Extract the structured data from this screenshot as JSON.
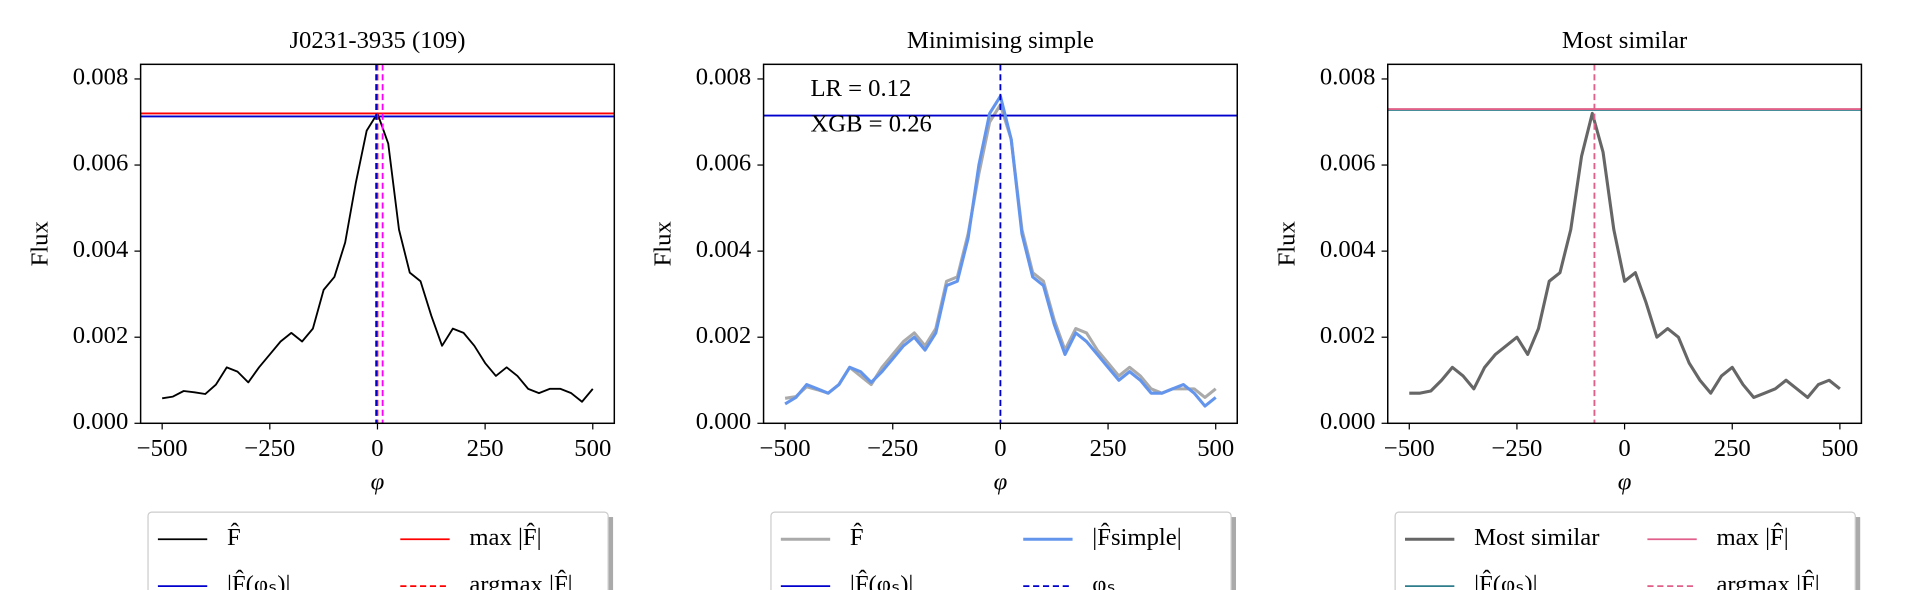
{
  "chart_data": [
    {
      "type": "line",
      "title": "J0231-3935 (109)",
      "xlabel": "φ",
      "ylabel": "Flux",
      "xlim": [
        -550,
        550
      ],
      "ylim": [
        0,
        0.00834
      ],
      "xticks": [
        {
          "value": -500,
          "label": "−500"
        },
        {
          "value": -250,
          "label": "−250"
        },
        0,
        250,
        500
      ],
      "yticks": [
        {
          "value": 0,
          "label": "0.000"
        },
        0.002,
        0.004,
        0.006,
        0.008
      ],
      "annotations": [],
      "lines": [
        {
          "kind": "curve",
          "name": "F̂",
          "color": "#000000",
          "width": 1.5,
          "x": [
            -500,
            -475,
            -450,
            -425,
            -400,
            -375,
            -350,
            -325,
            -300,
            -275,
            -250,
            -225,
            -200,
            -175,
            -150,
            -125,
            -100,
            -75,
            -50,
            -25,
            0,
            25,
            50,
            75,
            100,
            125,
            150,
            175,
            200,
            225,
            250,
            275,
            300,
            325,
            350,
            375,
            400,
            425,
            450,
            475,
            500
          ],
          "values": [
            0.00058,
            0.00062,
            0.00075,
            0.00072,
            0.00068,
            0.0009,
            0.0013,
            0.0012,
            0.00095,
            0.0013,
            0.0016,
            0.0019,
            0.0021,
            0.0019,
            0.0022,
            0.0031,
            0.0034,
            0.0042,
            0.0056,
            0.0068,
            0.0072,
            0.0065,
            0.0045,
            0.0035,
            0.0033,
            0.0025,
            0.0018,
            0.0022,
            0.0021,
            0.0018,
            0.0014,
            0.0011,
            0.0013,
            0.0011,
            0.0008,
            0.0007,
            0.0008,
            0.0008,
            0.0007,
            0.0005,
            0.0008
          ]
        },
        {
          "kind": "hline",
          "name": "|F̂(φₛ)|",
          "color": "#0000cc",
          "value": 0.00713
        },
        {
          "kind": "hline",
          "name": "max |F̂|",
          "color": "#ff0000",
          "value": 0.0072
        },
        {
          "kind": "vline",
          "name": "argmax |F̂|",
          "color": "#ff0000",
          "dash": true,
          "value": 0
        },
        {
          "kind": "vline",
          "color": "#0000cc",
          "dash": true,
          "value": -3
        },
        {
          "kind": "vline",
          "color": "#ff00ff",
          "dash": true,
          "value": 12
        }
      ]
    },
    {
      "type": "line",
      "title": "Minimising simple",
      "xlabel": "φ",
      "ylabel": "Flux",
      "xlim": [
        -550,
        550
      ],
      "ylim": [
        0,
        0.00834
      ],
      "xticks": [
        {
          "value": -500,
          "label": "−500"
        },
        {
          "value": -250,
          "label": "−250"
        },
        0,
        250,
        500
      ],
      "yticks": [
        {
          "value": 0,
          "label": "0.000"
        },
        0.002,
        0.004,
        0.006,
        0.008
      ],
      "annotations": [
        "LR = 0.12",
        "XGB = 0.26"
      ],
      "lines": [
        {
          "kind": "curve",
          "name": "F̂",
          "color": "#aaaaaa",
          "width": 2.5,
          "x": [
            -500,
            -475,
            -450,
            -425,
            -400,
            -375,
            -350,
            -325,
            -300,
            -275,
            -250,
            -225,
            -200,
            -175,
            -150,
            -125,
            -100,
            -75,
            -50,
            -25,
            0,
            25,
            50,
            75,
            100,
            125,
            150,
            175,
            200,
            225,
            250,
            275,
            300,
            325,
            350,
            375,
            400,
            425,
            450,
            475,
            500
          ],
          "values": [
            0.00058,
            0.00062,
            0.00085,
            0.00078,
            0.0007,
            0.0009,
            0.0013,
            0.0011,
            0.0009,
            0.0013,
            0.0016,
            0.0019,
            0.0021,
            0.0018,
            0.0022,
            0.0033,
            0.0034,
            0.0044,
            0.0058,
            0.007,
            0.0074,
            0.0066,
            0.0045,
            0.0035,
            0.0033,
            0.0024,
            0.0017,
            0.0022,
            0.0021,
            0.0017,
            0.0014,
            0.0011,
            0.0013,
            0.0011,
            0.0008,
            0.0007,
            0.0008,
            0.0008,
            0.0008,
            0.0006,
            0.0008
          ]
        },
        {
          "kind": "hline",
          "name": "|F̂(φₛ)|",
          "color": "#0000cc",
          "value": 0.00715
        },
        {
          "kind": "curve",
          "name": "|F̂simple|",
          "color": "#6495ed",
          "width": 2.5,
          "x": [
            -500,
            -475,
            -450,
            -425,
            -400,
            -375,
            -350,
            -325,
            -300,
            -275,
            -250,
            -225,
            -200,
            -175,
            -150,
            -125,
            -100,
            -75,
            -50,
            -25,
            0,
            25,
            50,
            75,
            100,
            125,
            150,
            175,
            200,
            225,
            250,
            275,
            300,
            325,
            350,
            375,
            400,
            425,
            450,
            475,
            500
          ],
          "values": [
            0.00045,
            0.0006,
            0.0009,
            0.0008,
            0.0007,
            0.0009,
            0.0013,
            0.0012,
            0.00095,
            0.0012,
            0.0015,
            0.0018,
            0.002,
            0.0017,
            0.0021,
            0.0032,
            0.0033,
            0.0043,
            0.006,
            0.0072,
            0.0076,
            0.0066,
            0.0044,
            0.0034,
            0.0032,
            0.0023,
            0.0016,
            0.0021,
            0.0019,
            0.0016,
            0.0013,
            0.001,
            0.0012,
            0.001,
            0.0007,
            0.0007,
            0.0008,
            0.0009,
            0.0007,
            0.0004,
            0.0006
          ]
        },
        {
          "kind": "vline",
          "name": "φₛ",
          "color": "#0000cc",
          "dash": true,
          "value": 0
        }
      ]
    },
    {
      "type": "line",
      "title": "Most similar",
      "xlabel": "φ",
      "ylabel": "Flux",
      "xlim": [
        -550,
        550
      ],
      "ylim": [
        0,
        0.00834
      ],
      "xticks": [
        {
          "value": -500,
          "label": "−500"
        },
        {
          "value": -250,
          "label": "−250"
        },
        0,
        250,
        500
      ],
      "yticks": [
        {
          "value": 0,
          "label": "0.000"
        },
        0.002,
        0.004,
        0.006,
        0.008
      ],
      "annotations": [],
      "lines": [
        {
          "kind": "curve",
          "name": "Most similar",
          "color": "#666666",
          "width": 2.5,
          "x": [
            -500,
            -475,
            -450,
            -425,
            -400,
            -375,
            -350,
            -325,
            -300,
            -275,
            -250,
            -225,
            -200,
            -175,
            -150,
            -125,
            -100,
            -75,
            -50,
            -25,
            0,
            25,
            50,
            75,
            100,
            125,
            150,
            175,
            200,
            225,
            250,
            275,
            300,
            325,
            350,
            375,
            400,
            425,
            450,
            475,
            500
          ],
          "values": [
            0.0007,
            0.0007,
            0.00075,
            0.001,
            0.0013,
            0.0011,
            0.0008,
            0.0013,
            0.0016,
            0.0018,
            0.002,
            0.0016,
            0.0022,
            0.0033,
            0.0035,
            0.0045,
            0.0062,
            0.0072,
            0.0063,
            0.0045,
            0.0033,
            0.0035,
            0.0028,
            0.002,
            0.0022,
            0.002,
            0.0014,
            0.001,
            0.0007,
            0.0011,
            0.0013,
            0.0009,
            0.0006,
            0.0007,
            0.0008,
            0.001,
            0.0008,
            0.0006,
            0.0009,
            0.001,
            0.0008
          ]
        },
        {
          "kind": "hline",
          "name": "|F̂(φₛ)|",
          "color": "#2e7d8c",
          "value": 0.00728
        },
        {
          "kind": "hline",
          "name": "max |F̂|",
          "color": "#e0608a",
          "value": 0.0073
        },
        {
          "kind": "vline",
          "name": "argmax |F̂|",
          "color": "#e0608a",
          "dash": true,
          "value": -70
        }
      ]
    }
  ]
}
